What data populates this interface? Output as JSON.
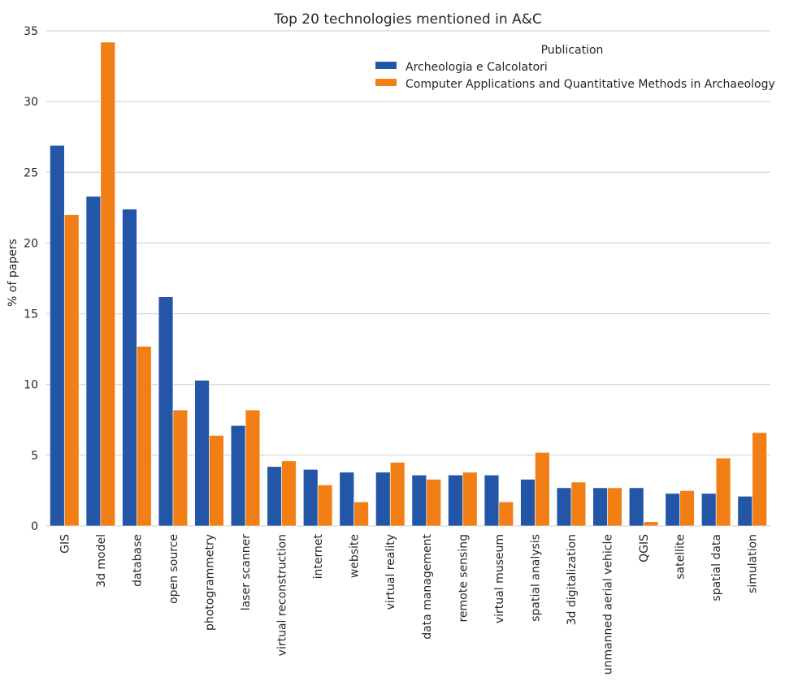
{
  "chart_data": {
    "type": "bar",
    "title": "Top 20 technologies mentioned in A&C",
    "xlabel": "",
    "ylabel": "% of papers",
    "ylim": [
      0,
      35
    ],
    "yticks": [
      0,
      5,
      10,
      15,
      20,
      25,
      30,
      35
    ],
    "grid": "horizontal",
    "legend": {
      "title": "Publication",
      "placement": "top-right"
    },
    "categories": [
      "GIS",
      "3d model",
      "database",
      "open source",
      "photogrammetry",
      "laser scanner",
      "virtual reconstruction",
      "internet",
      "website",
      "virtual reality",
      "data management",
      "remote sensing",
      "virtual museum",
      "spatial analysis",
      "3d digitalization",
      "unmanned aerial vehicle",
      "QGIS",
      "satellite",
      "spatial data",
      "simulation"
    ],
    "series": [
      {
        "name": "Archeologia e Calcolatori",
        "color": "#2356a6",
        "values": [
          26.9,
          23.3,
          22.4,
          16.2,
          10.3,
          7.1,
          4.2,
          4.0,
          3.8,
          3.8,
          3.6,
          3.6,
          3.6,
          3.3,
          2.7,
          2.7,
          2.7,
          2.3,
          2.3,
          2.1
        ]
      },
      {
        "name": "Computer Applications and Quantitative Methods in Archaeology",
        "color": "#f27f16",
        "values": [
          22.0,
          34.2,
          12.7,
          8.2,
          6.4,
          8.2,
          4.6,
          2.9,
          1.7,
          4.5,
          3.3,
          3.8,
          1.7,
          5.2,
          3.1,
          2.7,
          0.3,
          2.5,
          4.8,
          6.6
        ]
      }
    ]
  }
}
